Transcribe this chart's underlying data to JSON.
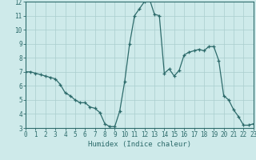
{
  "x": [
    0,
    0.5,
    1,
    1.5,
    2,
    2.5,
    3,
    3.5,
    4,
    4.5,
    5,
    5.5,
    6,
    6.5,
    7,
    7.5,
    8,
    8.5,
    9,
    9.5,
    10,
    10.5,
    11,
    11.5,
    12,
    12.5,
    13,
    13.5,
    14,
    14.5,
    15,
    15.5,
    16,
    16.5,
    17,
    17.5,
    18,
    18.5,
    19,
    19.5,
    20,
    20.5,
    21,
    21.5,
    22,
    22.5,
    23
  ],
  "y": [
    7.0,
    7.0,
    6.9,
    6.8,
    6.7,
    6.6,
    6.5,
    6.1,
    5.5,
    5.3,
    5.0,
    4.8,
    4.8,
    4.5,
    4.4,
    4.1,
    3.3,
    3.1,
    3.1,
    4.2,
    6.3,
    9.0,
    11.0,
    11.5,
    12.0,
    12.2,
    11.1,
    11.0,
    6.9,
    7.2,
    6.7,
    7.1,
    8.2,
    8.4,
    8.5,
    8.6,
    8.5,
    8.8,
    8.8,
    7.8,
    5.3,
    5.0,
    4.3,
    3.8,
    3.2,
    3.2,
    3.3
  ],
  "line_color": "#2d6b6b",
  "marker_color": "#2d6b6b",
  "bg_color": "#ceeaea",
  "grid_color": "#aacece",
  "xlabel": "Humidex (Indice chaleur)",
  "xlim": [
    0,
    23
  ],
  "ylim": [
    3,
    12
  ],
  "yticks": [
    3,
    4,
    5,
    6,
    7,
    8,
    9,
    10,
    11,
    12
  ],
  "xticks": [
    0,
    1,
    2,
    3,
    4,
    5,
    6,
    7,
    8,
    9,
    10,
    11,
    12,
    13,
    14,
    15,
    16,
    17,
    18,
    19,
    20,
    21,
    22,
    23
  ],
  "tick_fontsize": 5.5,
  "xlabel_fontsize": 6.5
}
